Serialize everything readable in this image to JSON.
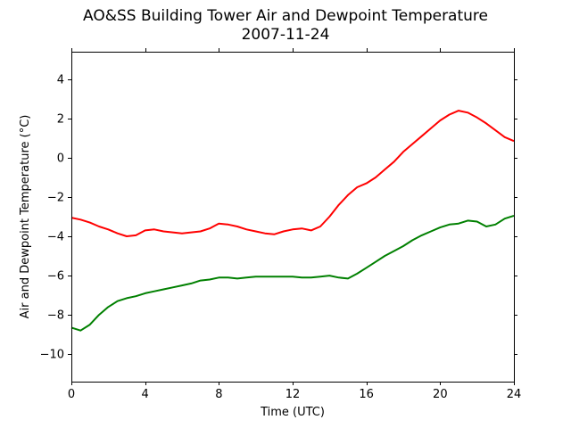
{
  "chart_data": {
    "type": "line",
    "title": "AO&SS Building Tower Air and Dewpoint Temperature",
    "subtitle": "2007-11-24",
    "xlabel": "Time (UTC)",
    "ylabel": "Air and Dewpoint Temperature (°C)",
    "xlim": [
      0,
      24
    ],
    "ylim": [
      -11.4,
      5.4
    ],
    "xticks": [
      0,
      4,
      8,
      12,
      16,
      20,
      24
    ],
    "yticks": [
      -10,
      -8,
      -6,
      -4,
      -2,
      0,
      2,
      4
    ],
    "ytick_labels": [
      "−10",
      "−8",
      "−6",
      "−4",
      "−2",
      "0",
      "2",
      "4"
    ],
    "grid": false,
    "series": [
      {
        "color": "#ff0000",
        "x": [
          0,
          0.5,
          1,
          1.5,
          2,
          2.5,
          3,
          3.5,
          4,
          4.5,
          5,
          5.5,
          6,
          6.5,
          7,
          7.5,
          8,
          8.5,
          9,
          9.5,
          10,
          10.5,
          11,
          11.5,
          12,
          12.5,
          13,
          13.5,
          14,
          14.5,
          15,
          15.5,
          16,
          16.5,
          17,
          17.5,
          18,
          18.5,
          19,
          19.5,
          20,
          20.5,
          21,
          21.5,
          22,
          22.5,
          23,
          23.5,
          24
        ],
        "values": [
          -3.05,
          -3.15,
          -3.3,
          -3.5,
          -3.65,
          -3.85,
          -4.0,
          -3.95,
          -3.7,
          -3.65,
          -3.75,
          -3.8,
          -3.85,
          -3.8,
          -3.75,
          -3.6,
          -3.35,
          -3.4,
          -3.5,
          -3.65,
          -3.75,
          -3.85,
          -3.9,
          -3.75,
          -3.65,
          -3.6,
          -3.7,
          -3.5,
          -3.0,
          -2.4,
          -1.9,
          -1.5,
          -1.3,
          -1.0,
          -0.6,
          -0.2,
          0.3,
          0.7,
          1.1,
          1.5,
          1.9,
          2.2,
          2.4,
          2.3,
          2.05,
          1.75,
          1.4,
          1.05,
          0.85
        ]
      },
      {
        "color": "#008000",
        "x": [
          0,
          0.5,
          1,
          1.5,
          2,
          2.5,
          3,
          3.5,
          4,
          4.5,
          5,
          5.5,
          6,
          6.5,
          7,
          7.5,
          8,
          8.5,
          9,
          9.5,
          10,
          10.5,
          11,
          11.5,
          12,
          12.5,
          13,
          13.5,
          14,
          14.5,
          15,
          15.5,
          16,
          16.5,
          17,
          17.5,
          18,
          18.5,
          19,
          19.5,
          20,
          20.5,
          21,
          21.5,
          22,
          22.5,
          23,
          23.5,
          24
        ],
        "values": [
          -8.65,
          -8.8,
          -8.5,
          -8.0,
          -7.6,
          -7.3,
          -7.15,
          -7.05,
          -6.9,
          -6.8,
          -6.7,
          -6.6,
          -6.5,
          -6.4,
          -6.25,
          -6.2,
          -6.1,
          -6.1,
          -6.15,
          -6.1,
          -6.05,
          -6.05,
          -6.05,
          -6.05,
          -6.05,
          -6.1,
          -6.1,
          -6.05,
          -6.0,
          -6.1,
          -6.15,
          -5.9,
          -5.6,
          -5.3,
          -5.0,
          -4.75,
          -4.5,
          -4.2,
          -3.95,
          -3.75,
          -3.55,
          -3.4,
          -3.35,
          -3.2,
          -3.25,
          -3.5,
          -3.4,
          -3.1,
          -2.95
        ]
      }
    ]
  }
}
